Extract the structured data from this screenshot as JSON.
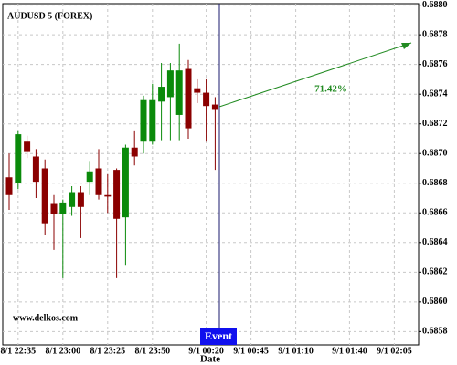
{
  "chart_data": {
    "type": "candlestick",
    "title": "AUDUSD 5 (FOREX)",
    "watermark": "www.delkos.com",
    "x_label": "Date",
    "event_label": "Event",
    "annotation": "71.42%",
    "up_color": "#0a8a0a",
    "down_color": "#8b0000",
    "categories": [
      null,
      "8/1 22:35",
      null,
      null,
      null,
      null,
      "8/1 23:00",
      null,
      null,
      null,
      null,
      "8/1 23:25",
      null,
      null,
      null,
      null,
      "8/1 23:50",
      null,
      null,
      null,
      null,
      null,
      "9/1 00:20",
      null,
      null,
      null,
      null,
      "9/1 00:45",
      null,
      null,
      null,
      null,
      "9/1 01:10",
      null,
      null,
      null,
      null,
      null,
      "9/1 01:40",
      null,
      null,
      null,
      null,
      "9/1 02:05",
      null
    ],
    "open": [
      0.68684,
      0.6868,
      0.68708,
      0.68698,
      0.6869,
      0.68666,
      0.68659,
      0.68664,
      0.68674,
      0.68681,
      0.6869,
      0.68672,
      0.68689,
      0.68657,
      0.68704,
      0.68708,
      0.68708,
      0.68735,
      0.68738,
      0.68726,
      0.68757,
      0.68744,
      0.68741,
      0.68733,
      null,
      null,
      null,
      null,
      null,
      null,
      null,
      null,
      null,
      null,
      null,
      null,
      null,
      null,
      null,
      null,
      null,
      null,
      null,
      null,
      null
    ],
    "high": [
      0.687,
      0.68715,
      0.68712,
      0.68703,
      0.68696,
      0.68672,
      0.68669,
      0.68678,
      0.68678,
      0.68695,
      0.68703,
      0.68686,
      0.6869,
      0.68706,
      0.68715,
      0.68739,
      0.68747,
      0.68761,
      0.68761,
      0.68774,
      0.68763,
      0.6875,
      0.6875,
      0.68738,
      null,
      null,
      null,
      null,
      null,
      null,
      null,
      null,
      null,
      null,
      null,
      null,
      null,
      null,
      null,
      null,
      null,
      null,
      null,
      null,
      null
    ],
    "low": [
      0.68662,
      0.68676,
      0.68697,
      0.6867,
      0.68645,
      0.68635,
      0.68616,
      0.68658,
      0.68643,
      0.68672,
      0.68669,
      0.6866,
      0.68616,
      0.68625,
      0.68692,
      0.687,
      0.68706,
      0.68709,
      0.68709,
      0.68709,
      0.6871,
      0.68734,
      0.68708,
      0.68689,
      null,
      null,
      null,
      null,
      null,
      null,
      null,
      null,
      null,
      null,
      null,
      null,
      null,
      null,
      null,
      null,
      null,
      null,
      null,
      null,
      null
    ],
    "close": [
      0.68672,
      0.68713,
      0.68701,
      0.68681,
      0.68653,
      0.68659,
      0.68667,
      0.68674,
      0.68664,
      0.68688,
      0.68672,
      0.68671,
      0.68656,
      0.68704,
      0.68698,
      0.68736,
      0.68736,
      0.68745,
      0.68756,
      0.68756,
      0.68717,
      0.68741,
      0.68732,
      0.6873,
      null,
      null,
      null,
      null,
      null,
      null,
      null,
      null,
      null,
      null,
      null,
      null,
      null,
      null,
      null,
      null,
      null,
      null,
      null,
      null,
      null
    ],
    "ylim": [
      0.68571,
      0.68801
    ],
    "yticks": [
      0.6858,
      {
        "value": 0.686,
        "label": "0.6860"
      },
      0.6862,
      0.6864,
      0.6866,
      0.6868,
      {
        "value": 0.687,
        "label": "0.6870"
      },
      0.6872,
      0.6874,
      0.6876,
      0.6878,
      {
        "value": 0.688,
        "label": "0.6880"
      }
    ],
    "grid": true
  }
}
